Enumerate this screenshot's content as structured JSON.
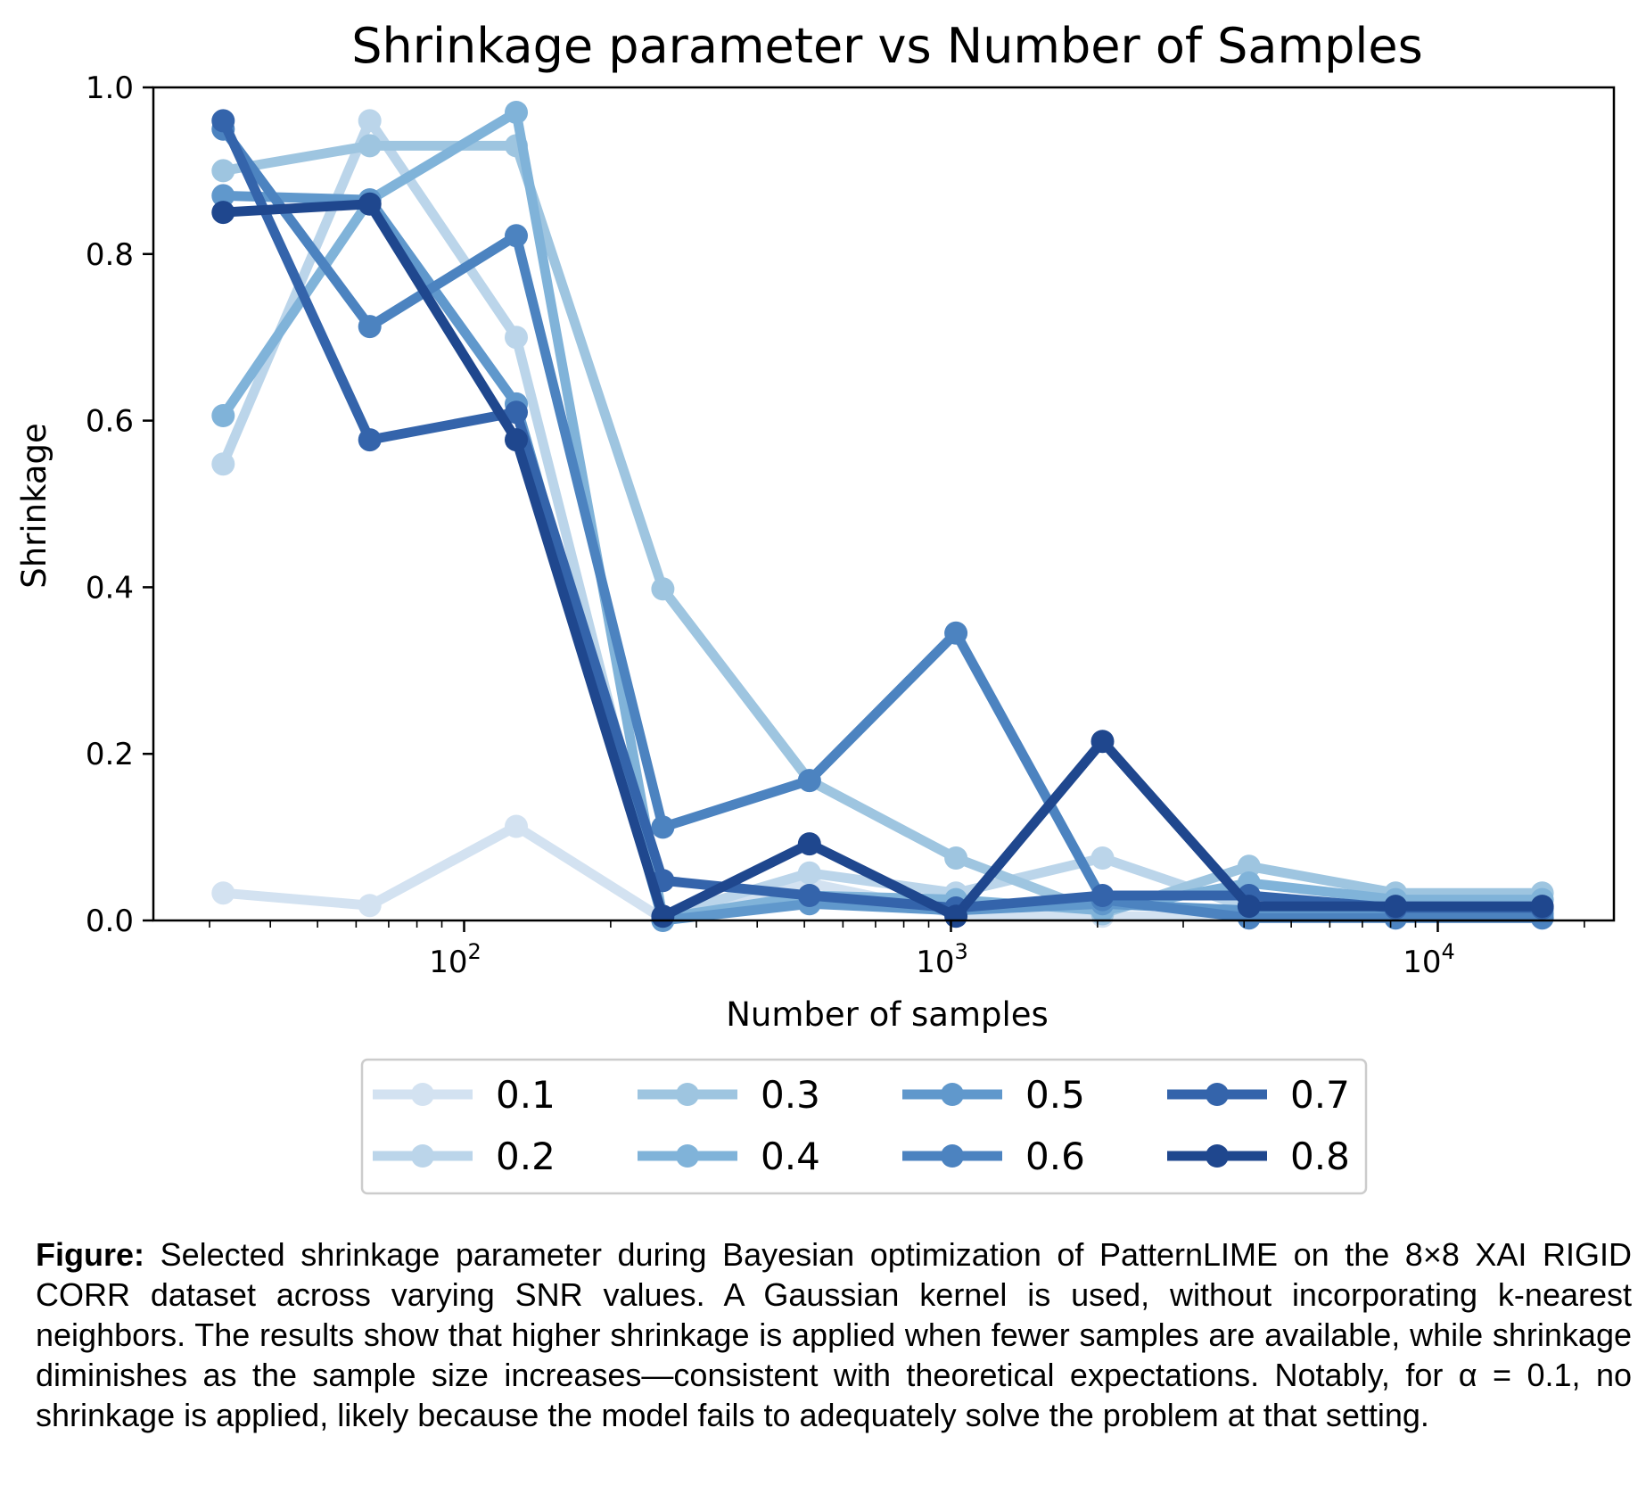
{
  "chart_data": {
    "type": "line",
    "title": "Shrinkage parameter vs Number of Samples",
    "xlabel": "Number of samples",
    "ylabel": "Shrinkage",
    "xscale": "log",
    "x": [
      32,
      64,
      128,
      256,
      512,
      1024,
      2048,
      4096,
      8192,
      16384
    ],
    "xlim": [
      23,
      23000
    ],
    "ylim": [
      0,
      1.0
    ],
    "yticks": [
      "0.0",
      "0.2",
      "0.4",
      "0.6",
      "0.8",
      "1.0"
    ],
    "ytick_values": [
      0,
      0.2,
      0.4,
      0.6,
      0.8,
      1.0
    ],
    "xticks": [
      {
        "value": 100,
        "base": "10",
        "exp": "2"
      },
      {
        "value": 1000,
        "base": "10",
        "exp": "3"
      },
      {
        "value": 10000,
        "base": "10",
        "exp": "4"
      }
    ],
    "grid": false,
    "legend_position": "bottom-center",
    "series": [
      {
        "name": "0.1",
        "color": "#d3e2f1",
        "values": [
          0.033,
          0.018,
          0.113,
          0.002,
          0.045,
          0.008,
          0.005,
          0.005,
          0.003,
          0.003
        ]
      },
      {
        "name": "0.2",
        "color": "#bbd5ea",
        "values": [
          0.548,
          0.96,
          0.7,
          0.005,
          0.057,
          0.033,
          0.075,
          0.015,
          0.012,
          0.012
        ]
      },
      {
        "name": "0.3",
        "color": "#9ec5e0",
        "values": [
          0.9,
          0.93,
          0.93,
          0.398,
          0.168,
          0.075,
          0.008,
          0.065,
          0.033,
          0.033
        ]
      },
      {
        "name": "0.4",
        "color": "#80b3d9",
        "values": [
          0.606,
          0.865,
          0.97,
          0.003,
          0.03,
          0.025,
          0.012,
          0.045,
          0.025,
          0.025
        ]
      },
      {
        "name": "0.5",
        "color": "#6098cc",
        "values": [
          0.87,
          0.865,
          0.62,
          0.0,
          0.02,
          0.012,
          0.02,
          0.012,
          0.008,
          0.008
        ]
      },
      {
        "name": "0.6",
        "color": "#4c83c0",
        "values": [
          0.95,
          0.713,
          0.822,
          0.112,
          0.168,
          0.345,
          0.025,
          0.003,
          0.003,
          0.003
        ]
      },
      {
        "name": "0.7",
        "color": "#3464ab",
        "values": [
          0.96,
          0.577,
          0.61,
          0.048,
          0.03,
          0.015,
          0.03,
          0.03,
          0.015,
          0.015
        ]
      },
      {
        "name": "0.8",
        "color": "#1f478e",
        "values": [
          0.85,
          0.86,
          0.577,
          0.005,
          0.092,
          0.005,
          0.215,
          0.017,
          0.017,
          0.017
        ]
      }
    ]
  },
  "caption": {
    "label": "Figure:",
    "text": "Selected shrinkage parameter during Bayesian optimization of PatternLIME on the 8×8 XAI RIGID CORR dataset across varying SNR values. A Gaussian kernel is used, without incorporating k-nearest neighbors. The results show that higher shrinkage is applied when fewer samples are available, while shrinkage diminishes as the sample size increases—consistent with theoretical expectations. Notably, for α = 0.1, no shrinkage is applied, likely because the model fails to adequately solve the problem at that setting."
  }
}
